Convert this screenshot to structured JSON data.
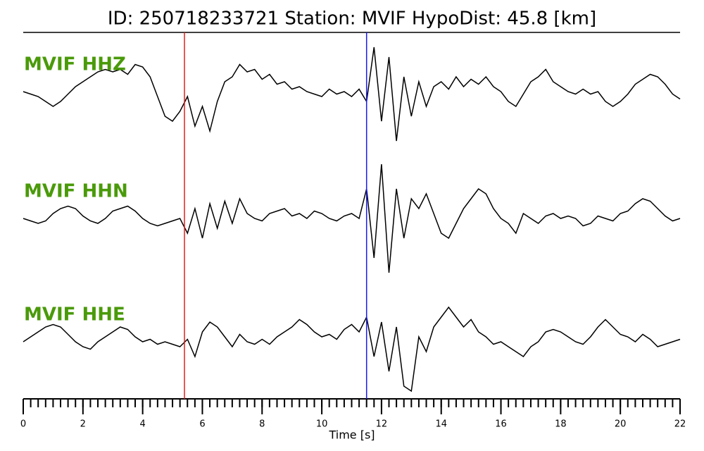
{
  "chart_data": {
    "type": "line",
    "title": "ID: 250718233721   Station: MVIF   HypoDist:    45.8 [km]",
    "xlabel": "Time [s]",
    "xlim": [
      0,
      22
    ],
    "xticks": [
      0,
      2,
      4,
      6,
      8,
      10,
      12,
      14,
      16,
      18,
      20,
      22
    ],
    "xminor_step": 0.25,
    "x": [
      0,
      0.25,
      0.5,
      0.75,
      1,
      1.25,
      1.5,
      1.75,
      2,
      2.25,
      2.5,
      2.75,
      3,
      3.25,
      3.5,
      3.75,
      4,
      4.25,
      4.5,
      4.75,
      5,
      5.25,
      5.5,
      5.75,
      6,
      6.25,
      6.5,
      6.75,
      7,
      7.25,
      7.5,
      7.75,
      8,
      8.25,
      8.5,
      8.75,
      9,
      9.25,
      9.5,
      9.75,
      10,
      10.25,
      10.5,
      10.75,
      11,
      11.25,
      11.5,
      11.75,
      12,
      12.25,
      12.5,
      12.75,
      13,
      13.25,
      13.5,
      13.75,
      14,
      14.25,
      14.5,
      14.75,
      15,
      15.25,
      15.5,
      15.75,
      16,
      16.25,
      16.5,
      16.75,
      17,
      17.25,
      17.5,
      17.75,
      18,
      18.25,
      18.5,
      18.75,
      19,
      19.25,
      19.5,
      19.75,
      20,
      20.25,
      20.5,
      20.75,
      21,
      21.25,
      21.5,
      21.75,
      22
    ],
    "label_color": "#4a9a0a",
    "series": [
      {
        "name": "MVIF HHZ",
        "color": "#000000",
        "values": [
          0.0,
          -0.05,
          -0.1,
          -0.2,
          -0.3,
          -0.2,
          -0.05,
          0.1,
          0.2,
          0.3,
          0.4,
          0.45,
          0.4,
          0.45,
          0.35,
          0.55,
          0.5,
          0.3,
          -0.1,
          -0.5,
          -0.6,
          -0.4,
          -0.1,
          -0.7,
          -0.3,
          -0.8,
          -0.2,
          0.2,
          0.3,
          0.55,
          0.4,
          0.45,
          0.25,
          0.35,
          0.15,
          0.2,
          0.05,
          0.1,
          0.0,
          -0.05,
          -0.1,
          0.05,
          -0.05,
          0.0,
          -0.1,
          0.05,
          -0.2,
          0.9,
          -0.6,
          0.7,
          -1.0,
          0.3,
          -0.5,
          0.2,
          -0.3,
          0.1,
          0.2,
          0.05,
          0.3,
          0.1,
          0.25,
          0.15,
          0.3,
          0.1,
          0.0,
          -0.2,
          -0.3,
          -0.05,
          0.2,
          0.3,
          0.45,
          0.2,
          0.1,
          0.0,
          -0.05,
          0.05,
          -0.05,
          0.0,
          -0.2,
          -0.3,
          -0.2,
          -0.05,
          0.15,
          0.25,
          0.35,
          0.3,
          0.15,
          -0.05,
          -0.15
        ]
      },
      {
        "name": "MVIF HHN",
        "color": "#000000",
        "values": [
          0.0,
          -0.05,
          -0.1,
          -0.05,
          0.1,
          0.2,
          0.25,
          0.2,
          0.05,
          -0.05,
          -0.1,
          0.0,
          0.15,
          0.2,
          0.25,
          0.15,
          0.0,
          -0.1,
          -0.15,
          -0.1,
          -0.05,
          0.0,
          -0.3,
          0.2,
          -0.4,
          0.3,
          -0.2,
          0.35,
          -0.1,
          0.4,
          0.1,
          0.0,
          -0.05,
          0.1,
          0.15,
          0.2,
          0.05,
          0.1,
          0.0,
          0.15,
          0.1,
          0.0,
          -0.05,
          0.05,
          0.1,
          0.0,
          0.6,
          -0.8,
          1.1,
          -1.1,
          0.6,
          -0.4,
          0.4,
          0.2,
          0.5,
          0.1,
          -0.3,
          -0.4,
          -0.1,
          0.2,
          0.4,
          0.6,
          0.5,
          0.2,
          0.0,
          -0.1,
          -0.3,
          0.1,
          0.0,
          -0.1,
          0.05,
          0.1,
          0.0,
          0.05,
          0.0,
          -0.15,
          -0.1,
          0.05,
          0.0,
          -0.05,
          0.1,
          0.15,
          0.3,
          0.4,
          0.35,
          0.2,
          0.05,
          -0.05,
          0.0
        ]
      },
      {
        "name": "MVIF HHE",
        "color": "#000000",
        "values": [
          0.0,
          0.1,
          0.2,
          0.3,
          0.35,
          0.3,
          0.15,
          0.0,
          -0.1,
          -0.15,
          0.0,
          0.1,
          0.2,
          0.3,
          0.25,
          0.1,
          0.0,
          0.05,
          -0.05,
          0.0,
          -0.05,
          -0.1,
          0.05,
          -0.3,
          0.2,
          0.4,
          0.3,
          0.1,
          -0.1,
          0.15,
          0.0,
          -0.05,
          0.05,
          -0.05,
          0.1,
          0.2,
          0.3,
          0.45,
          0.35,
          0.2,
          0.1,
          0.15,
          0.05,
          0.25,
          0.35,
          0.2,
          0.5,
          -0.3,
          0.4,
          -0.6,
          0.3,
          -0.9,
          -1.0,
          0.1,
          -0.2,
          0.3,
          0.5,
          0.7,
          0.5,
          0.3,
          0.45,
          0.2,
          0.1,
          -0.05,
          0.0,
          -0.1,
          -0.2,
          -0.3,
          -0.1,
          0.0,
          0.2,
          0.25,
          0.2,
          0.1,
          0.0,
          -0.05,
          0.1,
          0.3,
          0.45,
          0.3,
          0.15,
          0.1,
          0.0,
          0.15,
          0.05,
          -0.1,
          -0.05,
          0.0,
          0.05
        ]
      }
    ],
    "picks": [
      {
        "value": 5.4,
        "color": "#e0201c"
      },
      {
        "value": 11.5,
        "color": "#1a1aee"
      }
    ]
  }
}
